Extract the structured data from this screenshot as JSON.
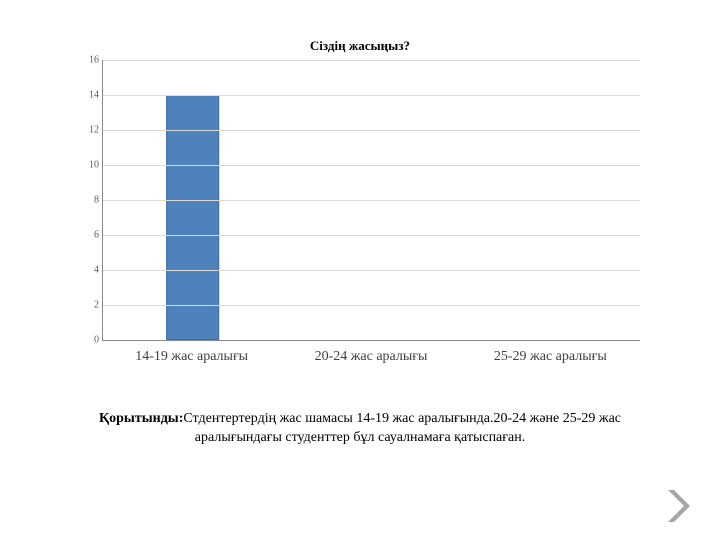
{
  "chart": {
    "type": "bar",
    "title": "Сіздің жасыңыз?",
    "title_fontsize": 13,
    "title_color": "#000000",
    "categories": [
      "14-19 жас аралығы",
      "20-24 жас аралығы",
      "25-29 жас аралығы"
    ],
    "values": [
      14,
      0,
      0
    ],
    "bar_colors": [
      "#4f81bd",
      "#4f81bd",
      "#4f81bd"
    ],
    "bar_width_pct": 30,
    "ylim": [
      0,
      16
    ],
    "ytick_step": 2,
    "yticks": [
      0,
      2,
      4,
      6,
      8,
      10,
      12,
      14,
      16
    ],
    "grid_color": "#d9d9d9",
    "axis_color": "#888888",
    "background_color": "#ffffff",
    "tick_fontsize": 10,
    "tick_color": "#5a5a5a",
    "xlabel_fontsize": 14,
    "xlabel_color": "#404040"
  },
  "conclusion": {
    "label": "Қорытынды:",
    "text": "Стдентертердің жас шамасы 14-19 жас аралығында.20-24 және 25-29 жас аралығындағы студенттер бұл сауалнамаға қатыспаған.",
    "fontsize": 14,
    "color": "#000000"
  },
  "decoration": {
    "arrow_color": "#a6a6a6"
  }
}
